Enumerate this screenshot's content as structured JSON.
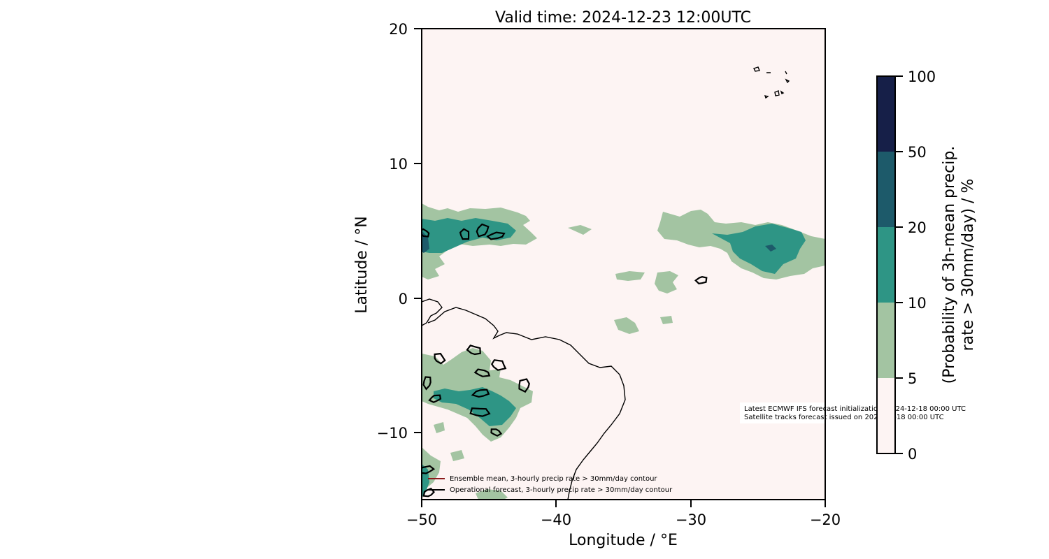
{
  "figure": {
    "title": "Valid time: 2024-12-23 12:00UTC",
    "xlabel": "Longitude / °E",
    "ylabel": "Latitude / °N",
    "x_ticks": [
      {
        "value": -50,
        "label": "−50"
      },
      {
        "value": -40,
        "label": "−40"
      },
      {
        "value": -30,
        "label": "−30"
      },
      {
        "value": -20,
        "label": "−20"
      }
    ],
    "y_ticks": [
      {
        "value": 20,
        "label": "20"
      },
      {
        "value": 10,
        "label": "10"
      },
      {
        "value": 0,
        "label": "0"
      },
      {
        "value": -10,
        "label": "−10"
      }
    ],
    "legend": [
      {
        "label": "Ensemble mean, 3-hourly precip rate > 30mm/day contour",
        "color": "#8b1a1a"
      },
      {
        "label": "Operational forecast, 3-hourly precip rate > 30mm/day contour",
        "color": "#000000"
      }
    ],
    "info_text": [
      "Latest ECMWF IFS forecast initialization: 2024-12-18 00:00 UTC",
      "Satellite tracks forecast issued on 2024-12-18 00:00 UTC"
    ],
    "colorbar": {
      "label_line1": "(Probability of 3h-mean precip.",
      "label_line2": "rate > 30mm/day) / %",
      "levels": [
        {
          "label": "0"
        },
        {
          "label": "5"
        },
        {
          "label": "10"
        },
        {
          "label": "20"
        },
        {
          "label": "50"
        },
        {
          "label": "100"
        }
      ],
      "colors": [
        "#fdf4f3",
        "#a3c4a2",
        "#2e9585",
        "#1d5a6a",
        "#161f48"
      ]
    }
  },
  "chart_data": {
    "type": "heatmap",
    "title": "Valid time: 2024-12-23 12:00UTC",
    "xlabel": "Longitude / °E",
    "ylabel": "Latitude / °N",
    "xlim": [
      -50,
      -20
    ],
    "ylim": [
      -15,
      20
    ],
    "x_ticks": [
      -50,
      -40,
      -30,
      -20
    ],
    "y_ticks": [
      -10,
      0,
      10,
      20
    ],
    "colorbar_levels_percent": [
      0,
      5,
      10,
      20,
      50,
      100
    ],
    "colorbar_label": "(Probability of 3h-mean precip. rate > 30mm/day) / %",
    "colors": [
      "#fdf4f3",
      "#a3c4a2",
      "#2e9585",
      "#1d5a6a",
      "#161f48"
    ],
    "probability_regions": [
      {
        "band": "5-10",
        "lon": [
          -50,
          -41.5
        ],
        "lat": [
          2.0,
          6.8
        ]
      },
      {
        "band": "10-20",
        "lon": [
          -50,
          -44.5
        ],
        "lat": [
          3.0,
          5.8
        ]
      },
      {
        "band": "20-50",
        "lon": [
          -50,
          -49.5
        ],
        "lat": [
          3.5,
          5.0
        ]
      },
      {
        "band": "5-10",
        "lon": [
          -32.5,
          -20
        ],
        "lat": [
          1.5,
          6.7
        ]
      },
      {
        "band": "10-20",
        "lon": [
          -26.5,
          -21.5
        ],
        "lat": [
          2.5,
          5.3
        ]
      },
      {
        "band": "20-50",
        "lon": [
          -24.3,
          -23.7
        ],
        "lat": [
          3.6,
          4.1
        ]
      },
      {
        "band": "5-10",
        "lon": [
          -36.5,
          -33.0
        ],
        "lat": [
          -2.8,
          -1.2
        ]
      },
      {
        "band": "5-10",
        "lon": [
          -50,
          -42.5
        ],
        "lat": [
          -10.5,
          -4.0
        ]
      },
      {
        "band": "10-20",
        "lon": [
          -50,
          -44.0
        ],
        "lat": [
          -9.5,
          -5.5
        ]
      },
      {
        "band": "5-10",
        "lon": [
          -50,
          -48.5
        ],
        "lat": [
          -15,
          -11.0
        ]
      },
      {
        "band": "10-20",
        "lon": [
          -50,
          -49.5
        ],
        "lat": [
          -15,
          -12.5
        ]
      },
      {
        "band": "5-10",
        "lon": [
          -46,
          -44.5
        ],
        "lat": [
          -15,
          -14.2
        ]
      }
    ],
    "operational_contours": [
      {
        "lon": -49.8,
        "lat": 4.8
      },
      {
        "lon": -46.8,
        "lat": 4.7
      },
      {
        "lon": -45.5,
        "lat": 5.0
      },
      {
        "lon": -44.5,
        "lat": 4.6
      },
      {
        "lon": -29.2,
        "lat": 1.3
      },
      {
        "lon": -46.1,
        "lat": -3.9
      },
      {
        "lon": -45.5,
        "lat": -5.6
      },
      {
        "lon": -44.3,
        "lat": -5.0
      },
      {
        "lon": -49.6,
        "lat": -6.3
      },
      {
        "lon": -49.0,
        "lat": -7.5
      },
      {
        "lon": -45.6,
        "lat": -7.1
      },
      {
        "lon": -45.7,
        "lat": -8.5
      },
      {
        "lon": -44.5,
        "lat": -10.0
      },
      {
        "lon": -48.7,
        "lat": -4.5
      },
      {
        "lon": -42.4,
        "lat": -6.5
      },
      {
        "lon": -49.7,
        "lat": -12.8
      },
      {
        "lon": -49.5,
        "lat": -14.5
      }
    ]
  }
}
